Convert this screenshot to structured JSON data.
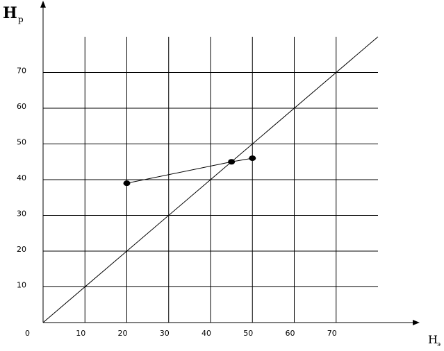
{
  "chart_data": {
    "type": "line",
    "ylabel": "Н",
    "ylabel_sub": "р",
    "xlabel": "Н",
    "xlabel_sub": "э",
    "x": [
      20,
      45,
      50
    ],
    "values": [
      39,
      45,
      46
    ],
    "color": "#000000",
    "reference_line": {
      "x": [
        0,
        80
      ],
      "y": [
        0,
        80
      ]
    },
    "xlim": [
      0,
      80
    ],
    "ylim": [
      0,
      80
    ],
    "xticks": [
      0,
      10,
      20,
      30,
      40,
      50,
      60,
      70
    ],
    "yticks": [
      10,
      20,
      30,
      40,
      50,
      60,
      70
    ],
    "grid": true
  }
}
